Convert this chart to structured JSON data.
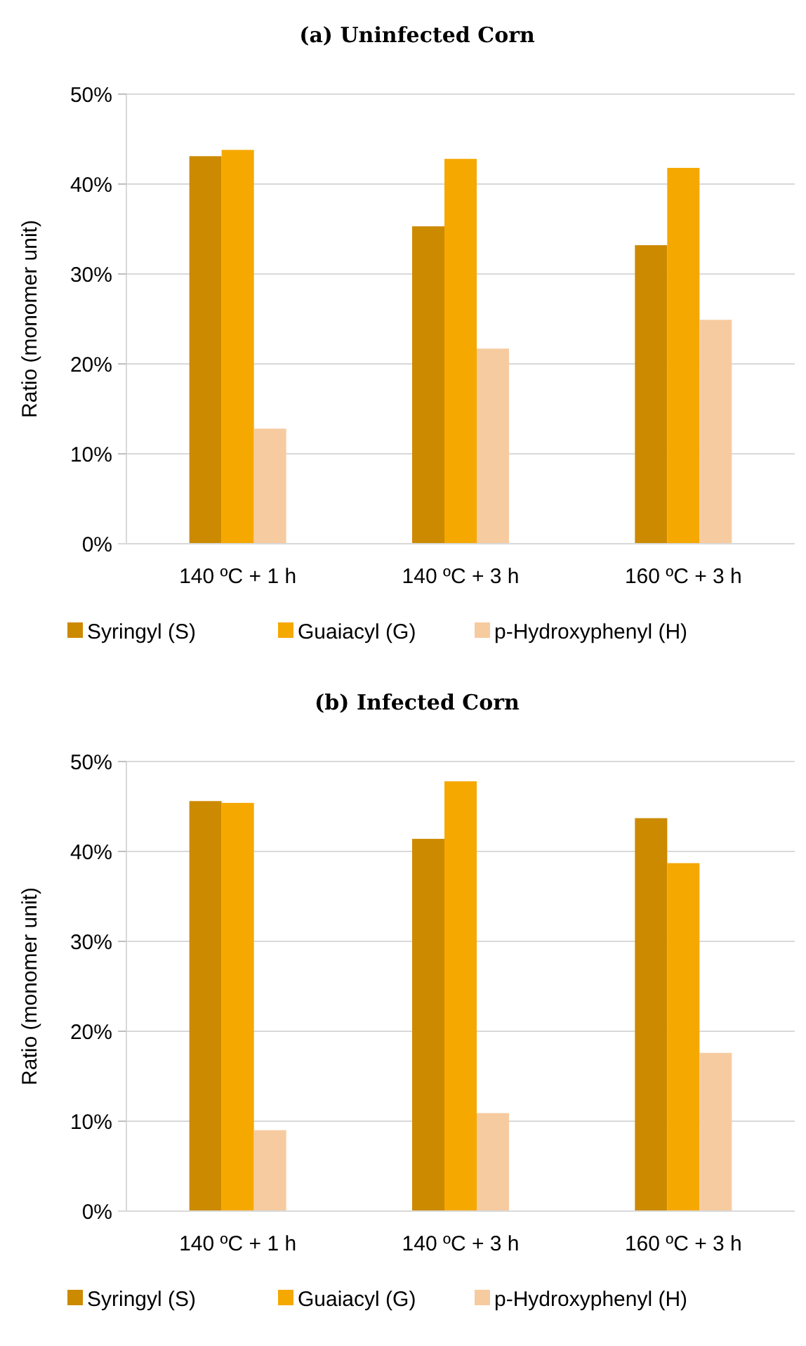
{
  "chart_data": [
    {
      "type": "bar",
      "title": "(a) Uninfected Corn",
      "ylabel": "Ratio (monomer unit)",
      "categories": [
        "140 ºC + 1 h",
        "140 ºC + 3 h",
        "160 ºC + 3 h"
      ],
      "series": [
        {
          "name": "Syringyl (S)",
          "color": "#cc8a00",
          "values": [
            43.1,
            35.3,
            33.2
          ]
        },
        {
          "name": "Guaiacyl (G)",
          "color": "#f5a800",
          "values": [
            43.8,
            42.8,
            41.8
          ]
        },
        {
          "name": "p-Hydroxyphenyl (H)",
          "color": "#f7cba0",
          "values": [
            12.8,
            21.7,
            24.9
          ]
        }
      ],
      "ylim": [
        0,
        50
      ],
      "yticks": [
        {
          "value": 0,
          "label": "0%"
        },
        {
          "value": 10,
          "label": "10%"
        },
        {
          "value": 20,
          "label": "20%"
        },
        {
          "value": 30,
          "label": "30%"
        },
        {
          "value": 40,
          "label": "40%"
        },
        {
          "value": 50,
          "label": "50%"
        }
      ],
      "grid": "y",
      "legend": "bottom"
    },
    {
      "type": "bar",
      "title": "(b) Infected Corn",
      "ylabel": "Ratio (monomer unit)",
      "categories": [
        "140 ºC + 1 h",
        "140 ºC + 3 h",
        "160 ºC + 3 h"
      ],
      "series": [
        {
          "name": "Syringyl (S)",
          "color": "#cc8a00",
          "values": [
            45.6,
            41.4,
            43.7
          ]
        },
        {
          "name": "Guaiacyl (G)",
          "color": "#f5a800",
          "values": [
            45.4,
            47.8,
            38.7
          ]
        },
        {
          "name": "p-Hydroxyphenyl (H)",
          "color": "#f7cba0",
          "values": [
            9.0,
            10.9,
            17.6
          ]
        }
      ],
      "ylim": [
        0,
        50
      ],
      "yticks": [
        {
          "value": 0,
          "label": "0%"
        },
        {
          "value": 10,
          "label": "10%"
        },
        {
          "value": 20,
          "label": "20%"
        },
        {
          "value": 30,
          "label": "30%"
        },
        {
          "value": 40,
          "label": "40%"
        },
        {
          "value": 50,
          "label": "50%"
        }
      ],
      "grid": "y",
      "legend": "bottom"
    }
  ]
}
